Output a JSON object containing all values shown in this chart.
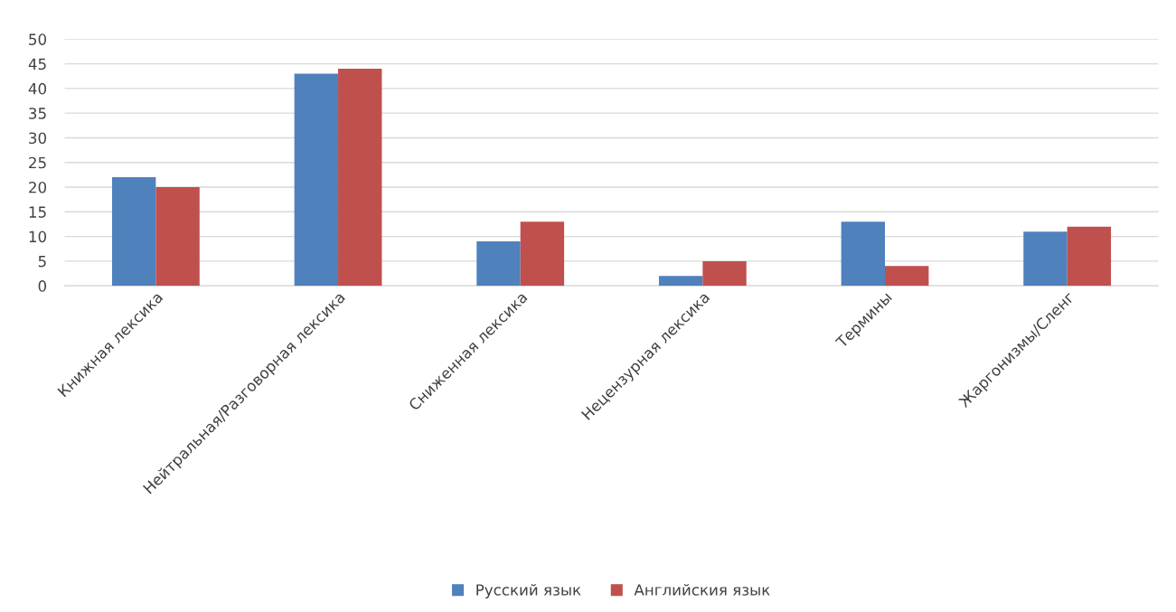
{
  "chart_data": {
    "type": "bar",
    "categories": [
      "Книжная лексика",
      "Нейтральная/Разговорная лексика",
      "Сниженная лексика",
      "Нецензурная лексика",
      "Термины",
      "Жаргонизмы/Сленг"
    ],
    "series": [
      {
        "name": "Русский язык",
        "color": "#4f81bd",
        "values": [
          22,
          43,
          9,
          2,
          13,
          11
        ]
      },
      {
        "name": "Английския язык",
        "color": "#c0504d",
        "values": [
          20,
          44,
          13,
          5,
          4,
          12
        ]
      }
    ],
    "ylim": [
      0,
      50
    ],
    "yticks": [
      0,
      5,
      10,
      15,
      20,
      25,
      30,
      35,
      40,
      45,
      50
    ],
    "grid": "y",
    "legend": "bottom"
  }
}
